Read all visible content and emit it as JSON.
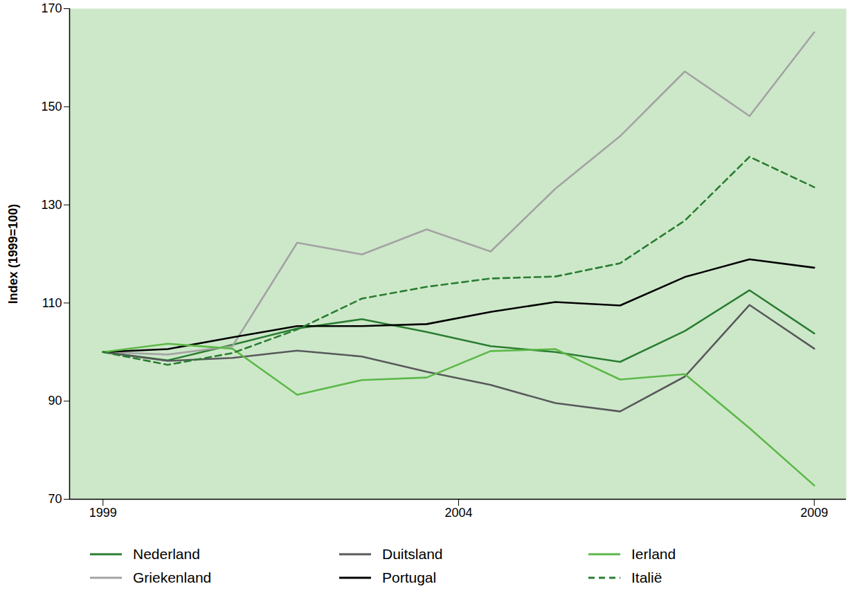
{
  "chart_data": {
    "type": "line",
    "x": [
      1999,
      1999.91,
      2000.82,
      2001.73,
      2002.64,
      2003.55,
      2004.45,
      2005.36,
      2006.27,
      2007.18,
      2008.09,
      2009
    ],
    "xlim": [
      1998.53,
      2009.45
    ],
    "xticks": [
      1999,
      2004,
      2009
    ],
    "ylabel": "Index (1999=100)",
    "ylim": [
      70,
      170
    ],
    "yticks": [
      70,
      90,
      110,
      130,
      150,
      170
    ],
    "grid": false,
    "legend": "bottom",
    "series": [
      {
        "name": "Nederland",
        "color": "#2a7d32",
        "line_style": "solid",
        "values": [
          100,
          98.3,
          101.5,
          104.8,
          106.7,
          104.1,
          101.2,
          100,
          98,
          104.3,
          112.6,
          103.8
        ]
      },
      {
        "name": "Griekenland",
        "color": "#a3a3a3",
        "line_style": "solid",
        "values": [
          100,
          99.5,
          101.2,
          122.3,
          119.9,
          125,
          120.5,
          133.3,
          144,
          157.2,
          148.1,
          165.2
        ]
      },
      {
        "name": "Duitsland",
        "color": "#58595b",
        "line_style": "solid",
        "values": [
          100,
          98.2,
          98.8,
          100.3,
          99.1,
          96,
          93.3,
          89.6,
          87.9,
          95,
          109.6,
          100.7
        ]
      },
      {
        "name": "Portugal",
        "color": "#000000",
        "line_style": "solid",
        "values": [
          100,
          100.6,
          103,
          105.3,
          105.3,
          105.7,
          108.2,
          110.2,
          109.5,
          115.3,
          118.9,
          117.2
        ]
      },
      {
        "name": "Ierland",
        "color": "#5cb848",
        "line_style": "solid",
        "values": [
          100,
          101.7,
          100.7,
          91.3,
          94.3,
          94.8,
          100.2,
          100.6,
          94.4,
          95.5,
          84.5,
          72.8
        ]
      },
      {
        "name": "Italië",
        "color": "#2a7d32",
        "line_style": "dashed",
        "values": [
          100,
          97.4,
          99.8,
          104.6,
          110.9,
          113.3,
          115,
          115.4,
          118.1,
          126.8,
          139.8,
          133.6
        ]
      }
    ]
  }
}
